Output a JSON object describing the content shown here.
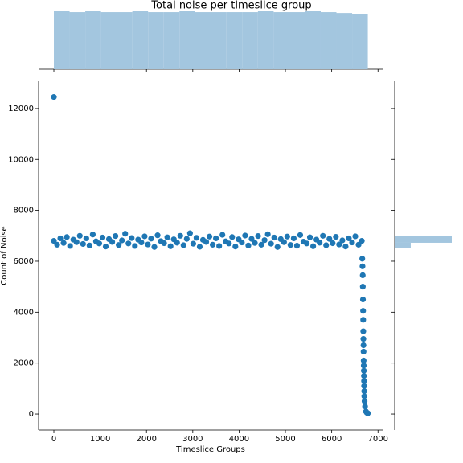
{
  "chart_data": [
    {
      "type": "scatter",
      "title": "Total noise per timeslice group",
      "x_label": "Timeslice Groups",
      "y_label": "Count of Noise",
      "color": "#1f77b4",
      "x": [
        0,
        0,
        70,
        140,
        210,
        280,
        350,
        420,
        490,
        560,
        630,
        700,
        770,
        840,
        910,
        980,
        1050,
        1120,
        1190,
        1260,
        1330,
        1400,
        1470,
        1540,
        1610,
        1680,
        1750,
        1820,
        1890,
        1960,
        2030,
        2100,
        2170,
        2240,
        2310,
        2380,
        2450,
        2520,
        2590,
        2660,
        2730,
        2800,
        2870,
        2940,
        3010,
        3080,
        3150,
        3220,
        3290,
        3360,
        3430,
        3500,
        3570,
        3640,
        3710,
        3780,
        3850,
        3920,
        3990,
        4060,
        4130,
        4200,
        4270,
        4340,
        4410,
        4480,
        4550,
        4620,
        4690,
        4760,
        4830,
        4900,
        4970,
        5040,
        5110,
        5180,
        5250,
        5320,
        5390,
        5460,
        5530,
        5600,
        5670,
        5740,
        5810,
        5880,
        5950,
        6020,
        6090,
        6160,
        6230,
        6300,
        6370,
        6440,
        6510,
        6580,
        6650,
        6660,
        6665,
        6670,
        6672,
        6675,
        6678,
        6680,
        6682,
        6684,
        6686,
        6688,
        6690,
        6692,
        6694,
        6696,
        6698,
        6700,
        6702,
        6704,
        6710,
        6720,
        6740,
        6760,
        6780
      ],
      "values": [
        12450,
        6800,
        6650,
        6900,
        6720,
        6950,
        6600,
        6850,
        6750,
        7000,
        6680,
        6900,
        6620,
        7050,
        6780,
        6700,
        6930,
        6580,
        6870,
        6760,
        6990,
        6640,
        6820,
        7080,
        6700,
        6910,
        6600,
        6850,
        6740,
        6980,
        6660,
        6890,
        6560,
        7020,
        6790,
        6710,
        6940,
        6590,
        6860,
        6730,
        7000,
        6630,
        6880,
        7100,
        6690,
        6920,
        6570,
        6840,
        6760,
        6970,
        6650,
        6900,
        6600,
        7040,
        6780,
        6700,
        6950,
        6580,
        6860,
        6740,
        7010,
        6620,
        6880,
        6720,
        6990,
        6650,
        6830,
        7060,
        6690,
        6930,
        6560,
        6870,
        6750,
        6970,
        6640,
        6900,
        6610,
        7030,
        6770,
        6700,
        6940,
        6590,
        6850,
        6730,
        7000,
        6630,
        6880,
        6710,
        6960,
        6660,
        6820,
        6580,
        6900,
        6740,
        6980,
        6650,
        6800,
        6100,
        5800,
        5450,
        5000,
        4500,
        4050,
        3700,
        3250,
        2950,
        2700,
        2450,
        2100,
        1900,
        1700,
        1500,
        1300,
        1100,
        900,
        700,
        500,
        300,
        100,
        50,
        30
      ],
      "xlim": [
        -330,
        7100
      ],
      "xticks": [
        0,
        1000,
        2000,
        3000,
        4000,
        5000,
        6000,
        7000
      ],
      "ylim": [
        -630,
        13070
      ],
      "yticks": [
        0,
        2000,
        4000,
        6000,
        8000,
        10000,
        12000
      ]
    },
    {
      "type": "histogram",
      "orientation": "vertical",
      "color": "#a3c6df",
      "bins": [
        0,
        339,
        678,
        1017,
        1356,
        1695,
        2034,
        2373,
        2712,
        3051,
        3390,
        3729,
        4068,
        4407,
        4746,
        5085,
        5424,
        5763,
        6102,
        6441,
        6780
      ],
      "values": [
        340,
        335,
        340,
        335,
        335,
        340,
        335,
        335,
        340,
        335,
        335,
        335,
        335,
        340,
        335,
        335,
        340,
        335,
        330,
        325
      ],
      "ylim": [
        0,
        340
      ]
    },
    {
      "type": "histogram",
      "orientation": "horizontal",
      "color": "#a3c6df",
      "bins": [
        6536,
        6726,
        6979
      ],
      "values": [
        1800,
        6400
      ],
      "xlim": [
        0,
        6400
      ]
    }
  ]
}
